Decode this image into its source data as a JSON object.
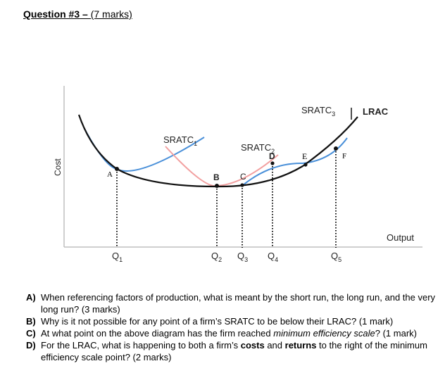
{
  "heading": {
    "question": "Question #3",
    "dash": " – ",
    "marks": "(7 marks)"
  },
  "diagram": {
    "y_axis_label": "Cost",
    "x_axis_label": "Output",
    "curve_labels": {
      "sratc1": "SRATC",
      "sratc1_sub": "1",
      "sratc2": "SRATC",
      "sratc2_sub": "2",
      "sratc3": "SRATC",
      "sratc3_sub": "3",
      "lrac": "LRAC"
    },
    "points": {
      "a": "A",
      "b": "B",
      "c": "C",
      "d": "D",
      "e": "E",
      "f": "F"
    },
    "quantities": [
      {
        "q": "Q",
        "sub": "1"
      },
      {
        "q": "Q",
        "sub": "2"
      },
      {
        "q": "Q",
        "sub": "3"
      },
      {
        "q": "Q",
        "sub": "4"
      },
      {
        "q": "Q",
        "sub": "5"
      }
    ],
    "colors": {
      "lrac": "#111111",
      "sratc_blue": "#4a90d9",
      "sratc_pink": "#f2a0a0"
    }
  },
  "questions": [
    {
      "letter": "A)",
      "line1": "When referencing factors of production, what is meant by the short run, the long run, and the very",
      "line2": "long run? (3 marks)"
    },
    {
      "letter": "B)",
      "line1": "Why is it not possible for any point of a firm’s SRATC to be below their LRAC? (1 mark)"
    },
    {
      "letter": "C)",
      "before": "At what point on the above diagram has the firm reached ",
      "emph": "minimum efficiency scale",
      "after": "? (1 mark)"
    },
    {
      "letter": "D)",
      "before": "For the LRAC, what is happening to both a firm’s ",
      "bold1": "costs",
      "mid": " and ",
      "bold2": "returns",
      "after": " to the right of the minimum",
      "line2": "efficiency scale point? (2 marks)"
    }
  ]
}
